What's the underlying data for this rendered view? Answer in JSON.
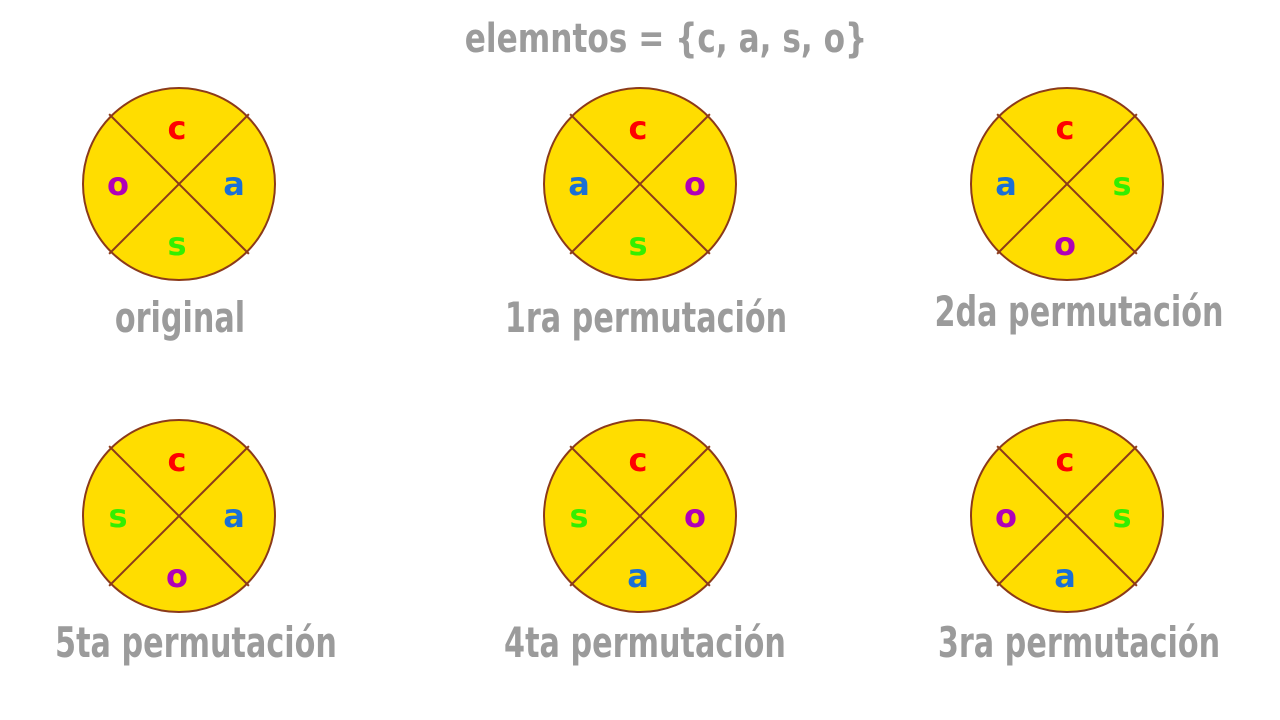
{
  "title": "elemntos = {c, a, s, o}",
  "colors": {
    "disc_fill": "#ffdd00",
    "disc_stroke": "#8b3a1a",
    "caption": "#9b9b9b",
    "c": "#ff0000",
    "a": "#1a6fd6",
    "s": "#33ee00",
    "o": "#b000b8"
  },
  "wheels": [
    {
      "caption": "original",
      "letters": {
        "top": "c",
        "right": "a",
        "bottom": "s",
        "left": "o"
      }
    },
    {
      "caption": "1ra permutación",
      "letters": {
        "top": "c",
        "right": "o",
        "bottom": "s",
        "left": "a"
      }
    },
    {
      "caption": "2da permutación",
      "letters": {
        "top": "c",
        "right": "s",
        "bottom": "o",
        "left": "a"
      }
    },
    {
      "caption": "5ta permutación",
      "letters": {
        "top": "c",
        "right": "a",
        "bottom": "o",
        "left": "s"
      }
    },
    {
      "caption": "4ta permutación",
      "letters": {
        "top": "c",
        "right": "o",
        "bottom": "a",
        "left": "s"
      }
    },
    {
      "caption": "3ra permutación",
      "letters": {
        "top": "c",
        "right": "s",
        "bottom": "a",
        "left": "o"
      }
    }
  ]
}
